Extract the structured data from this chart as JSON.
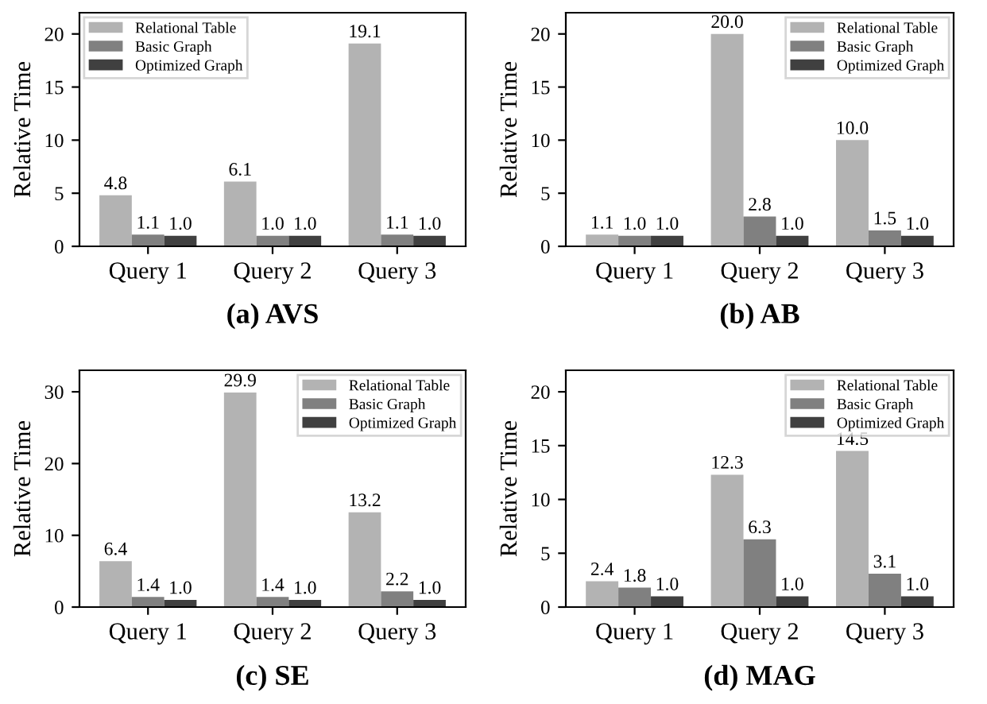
{
  "chart_data": [
    {
      "type": "bar",
      "title": "(a) AVS",
      "ylabel": "Relative Time",
      "categories": [
        "Query 1",
        "Query 2",
        "Query 3"
      ],
      "ylim": [
        0,
        22
      ],
      "yticks": [
        0,
        5,
        10,
        15,
        20
      ],
      "legend": "top left",
      "series": [
        {
          "name": "Relational Table",
          "color": "#b3b3b3",
          "values": [
            4.8,
            6.1,
            19.1
          ],
          "value_labels": [
            "4.8",
            "6.1",
            "19.1"
          ]
        },
        {
          "name": "Basic Graph",
          "color": "#808080",
          "values": [
            1.1,
            1,
            1.1
          ],
          "value_labels": [
            "1.1",
            "1.0",
            "1.1"
          ]
        },
        {
          "name": "Optimized Graph",
          "color": "#404040",
          "values": [
            1,
            1,
            1
          ],
          "value_labels": [
            "1.0",
            "1.0",
            "1.0"
          ]
        }
      ]
    },
    {
      "type": "bar",
      "title": "(b) AB",
      "ylabel": "Relative Time",
      "categories": [
        "Query 1",
        "Query 2",
        "Query 3"
      ],
      "ylim": [
        0,
        22
      ],
      "yticks": [
        0,
        5,
        10,
        15,
        20
      ],
      "legend": "top right",
      "series": [
        {
          "name": "Relational Table",
          "color": "#b3b3b3",
          "values": [
            1.1,
            20,
            10
          ],
          "value_labels": [
            "1.1",
            "20.0",
            "10.0"
          ]
        },
        {
          "name": "Basic Graph",
          "color": "#808080",
          "values": [
            1,
            2.8,
            1.5
          ],
          "value_labels": [
            "1.0",
            "2.8",
            "1.5"
          ]
        },
        {
          "name": "Optimized Graph",
          "color": "#404040",
          "values": [
            1,
            1,
            1
          ],
          "value_labels": [
            "1.0",
            "1.0",
            "1.0"
          ]
        }
      ]
    },
    {
      "type": "bar",
      "title": "(c) SE",
      "ylabel": "Relative Time",
      "categories": [
        "Query 1",
        "Query 2",
        "Query 3"
      ],
      "ylim": [
        0,
        33
      ],
      "yticks": [
        0,
        10,
        20,
        30
      ],
      "legend": "top right",
      "series": [
        {
          "name": "Relational Table",
          "color": "#b3b3b3",
          "values": [
            6.4,
            29.9,
            13.2
          ],
          "value_labels": [
            "6.4",
            "29.9",
            "13.2"
          ]
        },
        {
          "name": "Basic Graph",
          "color": "#808080",
          "values": [
            1.4,
            1.4,
            2.2
          ],
          "value_labels": [
            "1.4",
            "1.4",
            "2.2"
          ]
        },
        {
          "name": "Optimized Graph",
          "color": "#404040",
          "values": [
            1,
            1,
            1
          ],
          "value_labels": [
            "1.0",
            "1.0",
            "1.0"
          ]
        }
      ]
    },
    {
      "type": "bar",
      "title": "(d) MAG",
      "ylabel": "Relative Time",
      "categories": [
        "Query 1",
        "Query 2",
        "Query 3"
      ],
      "ylim": [
        0,
        22
      ],
      "yticks": [
        0,
        5,
        10,
        15,
        20
      ],
      "legend": "top right",
      "series": [
        {
          "name": "Relational Table",
          "color": "#b3b3b3",
          "values": [
            2.4,
            12.3,
            14.5
          ],
          "value_labels": [
            "2.4",
            "12.3",
            "14.5"
          ]
        },
        {
          "name": "Basic Graph",
          "color": "#808080",
          "values": [
            1.8,
            6.3,
            3.1
          ],
          "value_labels": [
            "1.8",
            "6.3",
            "3.1"
          ]
        },
        {
          "name": "Optimized Graph",
          "color": "#404040",
          "values": [
            1,
            1,
            1
          ],
          "value_labels": [
            "1.0",
            "1.0",
            "1.0"
          ]
        }
      ]
    }
  ]
}
